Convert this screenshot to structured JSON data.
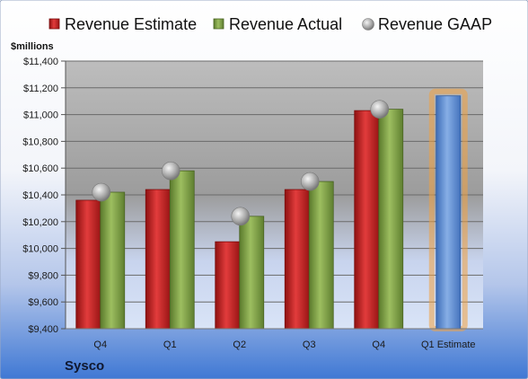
{
  "chart_data": {
    "type": "bar",
    "categories": [
      "Q4",
      "Q1",
      "Q2",
      "Q3",
      "Q4",
      "Q1 Estimate"
    ],
    "series": [
      {
        "name": "Revenue Estimate",
        "values": [
          10360,
          10440,
          10050,
          10440,
          11030,
          null
        ]
      },
      {
        "name": "Revenue Actual",
        "values": [
          10420,
          10580,
          10240,
          10500,
          11040,
          11140
        ]
      },
      {
        "name": "Revenue GAAP",
        "values": [
          10420,
          10580,
          10240,
          10500,
          11040,
          null
        ]
      }
    ],
    "ylabel": "$millions",
    "ylim": [
      9400,
      11400
    ],
    "yticks": [
      9400,
      9600,
      9800,
      10000,
      10200,
      10400,
      10600,
      10800,
      11000,
      11200,
      11400
    ],
    "ytick_labels": [
      "$9,400",
      "$9,600",
      "$9,800",
      "$10,000",
      "$10,200",
      "$10,400",
      "$10,600",
      "$10,800",
      "$11,000",
      "$11,200",
      "$11,400"
    ],
    "company": "Sysco",
    "grid": true,
    "legend_position": "top",
    "colors": {
      "estimate": "#d42a2a",
      "actual": "#8aaa4e",
      "gaap": "#c9c9c9",
      "forecast": "#6f9bd8",
      "forecast_glow": "#f0a040"
    },
    "highlighted_category": "Q1 Estimate"
  }
}
